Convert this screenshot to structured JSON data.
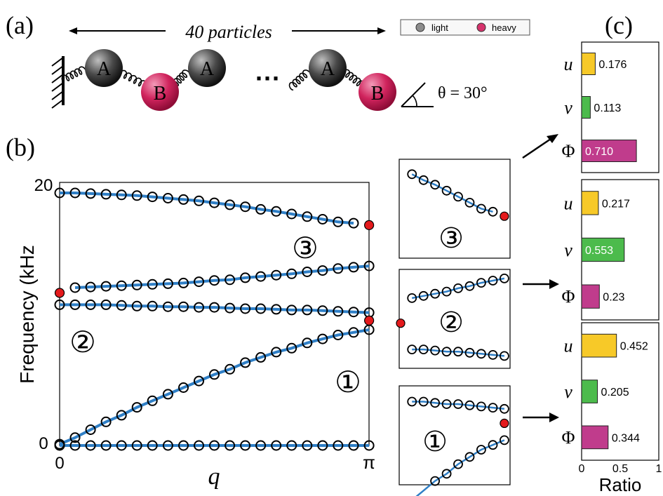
{
  "panels": {
    "a": "(a)",
    "b": "(b)",
    "c": "(c)"
  },
  "schematic": {
    "span_label": "40 particles",
    "particle_a": "A",
    "particle_b": "B",
    "ellipsis": "···",
    "angle_label": "θ = 30°",
    "legend": [
      {
        "label": "light",
        "color": "#8c8c8c"
      },
      {
        "label": "heavy",
        "color": "#d6336c"
      }
    ]
  },
  "colors": {
    "curve": "#2f7fc6",
    "marker_red": "#e41a1c",
    "u_bar": "#f7c928",
    "v_bar": "#4cbb4c",
    "phi_bar": "#c03c8c"
  },
  "chart_data": [
    {
      "type": "line",
      "id": "dispersion",
      "xlabel": "q",
      "ylabel": "Frequency (kHz",
      "x_ticks": [
        "0",
        "π"
      ],
      "y_ticks": [
        "0",
        "20"
      ],
      "xlim": [
        0,
        3.1416
      ],
      "ylim": [
        0,
        20
      ],
      "band_labels": [
        "③",
        "②",
        "①"
      ],
      "series": [
        {
          "x": [
            0,
            0.157,
            0.314,
            0.471,
            0.628,
            0.785,
            0.942,
            1.1,
            1.257,
            1.414,
            1.571,
            1.728,
            1.885,
            2.042,
            2.199,
            2.356,
            2.513,
            2.67,
            2.827,
            2.985,
            3.142
          ],
          "y": [
            0,
            0,
            0,
            0,
            0,
            0,
            0,
            0,
            0,
            0,
            0,
            0,
            0,
            0,
            0,
            0,
            0,
            0,
            0,
            0,
            0
          ]
        },
        {
          "x": [
            0,
            0.157,
            0.314,
            0.471,
            0.628,
            0.785,
            0.942,
            1.1,
            1.257,
            1.414,
            1.571,
            1.728,
            1.885,
            2.042,
            2.199,
            2.356,
            2.513,
            2.67,
            2.827,
            2.985,
            3.142
          ],
          "y": [
            0.1,
            0.6,
            1.2,
            1.8,
            2.3,
            2.9,
            3.4,
            3.9,
            4.4,
            4.9,
            5.4,
            5.8,
            6.3,
            6.7,
            7.1,
            7.4,
            7.8,
            8.1,
            8.4,
            8.6,
            8.8
          ]
        },
        {
          "x": [
            0,
            0.157,
            0.314,
            0.471,
            0.628,
            0.785,
            0.942,
            1.1,
            1.257,
            1.414,
            1.571,
            1.728,
            1.885,
            2.042,
            2.199,
            2.356,
            2.513,
            2.67,
            2.827,
            2.985,
            3.142
          ],
          "y": [
            10.7,
            10.7,
            10.7,
            10.7,
            10.65,
            10.6,
            10.6,
            10.55,
            10.55,
            10.5,
            10.5,
            10.45,
            10.4,
            10.4,
            10.35,
            10.3,
            10.3,
            10.25,
            10.2,
            10.15,
            10.1
          ]
        },
        {
          "x": [
            0.157,
            0.314,
            0.471,
            0.628,
            0.785,
            0.942,
            1.1,
            1.257,
            1.414,
            1.571,
            1.728,
            1.885,
            2.042,
            2.199,
            2.356,
            2.513,
            2.67,
            2.827,
            2.985,
            3.142
          ],
          "y": [
            12.0,
            12.05,
            12.1,
            12.15,
            12.2,
            12.25,
            12.3,
            12.35,
            12.45,
            12.55,
            12.6,
            12.75,
            12.85,
            12.95,
            13.05,
            13.2,
            13.3,
            13.45,
            13.55,
            13.65
          ]
        },
        {
          "x": [
            0,
            0.157,
            0.314,
            0.471,
            0.628,
            0.785,
            0.942,
            1.1,
            1.257,
            1.414,
            1.571,
            1.728,
            1.885,
            2.042,
            2.199,
            2.356,
            2.513,
            2.67,
            2.827,
            2.985
          ],
          "y": [
            19.2,
            19.2,
            19.15,
            19.1,
            19.05,
            19.0,
            18.9,
            18.8,
            18.7,
            18.6,
            18.45,
            18.3,
            18.15,
            17.95,
            17.8,
            17.6,
            17.4,
            17.2,
            17.0,
            16.9
          ]
        }
      ],
      "red_points": [
        {
          "x": 3.142,
          "y": 16.75
        },
        {
          "x": 0,
          "y": 11.6
        },
        {
          "x": 3.142,
          "y": 9.5
        }
      ]
    },
    {
      "type": "bar",
      "id": "ratio_mode3",
      "categories": [
        "u",
        "v",
        "Φ"
      ],
      "values": [
        0.176,
        0.113,
        0.71
      ],
      "labels": [
        "0.176",
        "0.113",
        "0.710"
      ]
    },
    {
      "type": "bar",
      "id": "ratio_mode2",
      "categories": [
        "u",
        "v",
        "Φ"
      ],
      "values": [
        0.217,
        0.553,
        0.23
      ],
      "labels": [
        "0.217",
        "0.553",
        "0.23"
      ]
    },
    {
      "type": "bar",
      "id": "ratio_mode1",
      "categories": [
        "u",
        "v",
        "Φ"
      ],
      "values": [
        0.452,
        0.205,
        0.344
      ],
      "labels": [
        "0.452",
        "0.205",
        "0.344"
      ],
      "xlabel": "Ratio",
      "x_ticks": [
        "0",
        "0.5",
        "1"
      ],
      "xlim": [
        0,
        1
      ]
    }
  ]
}
